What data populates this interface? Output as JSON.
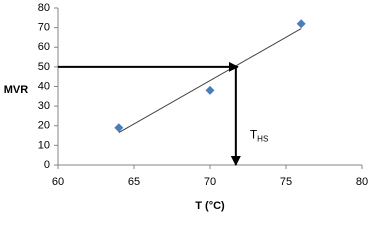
{
  "chart_data": {
    "type": "scatter",
    "x_label": "T (°C)",
    "y_label": "MVR",
    "x": [
      64,
      70,
      76
    ],
    "values": [
      19,
      38,
      72
    ],
    "color": "#4a7ebb",
    "trendline": {
      "x": [
        64,
        76
      ],
      "values": [
        16.5,
        69.5
      ],
      "color": "#404040"
    },
    "annotation": {
      "text": "T",
      "subscript": "HS",
      "x": 71.7,
      "y": 50
    },
    "xlim": [
      60,
      80
    ],
    "xticks": [
      60,
      65,
      70,
      75,
      80
    ],
    "ylim": [
      0,
      80
    ],
    "yticks": [
      0,
      10,
      20,
      30,
      40,
      50,
      60,
      70,
      80
    ],
    "grid": false
  }
}
